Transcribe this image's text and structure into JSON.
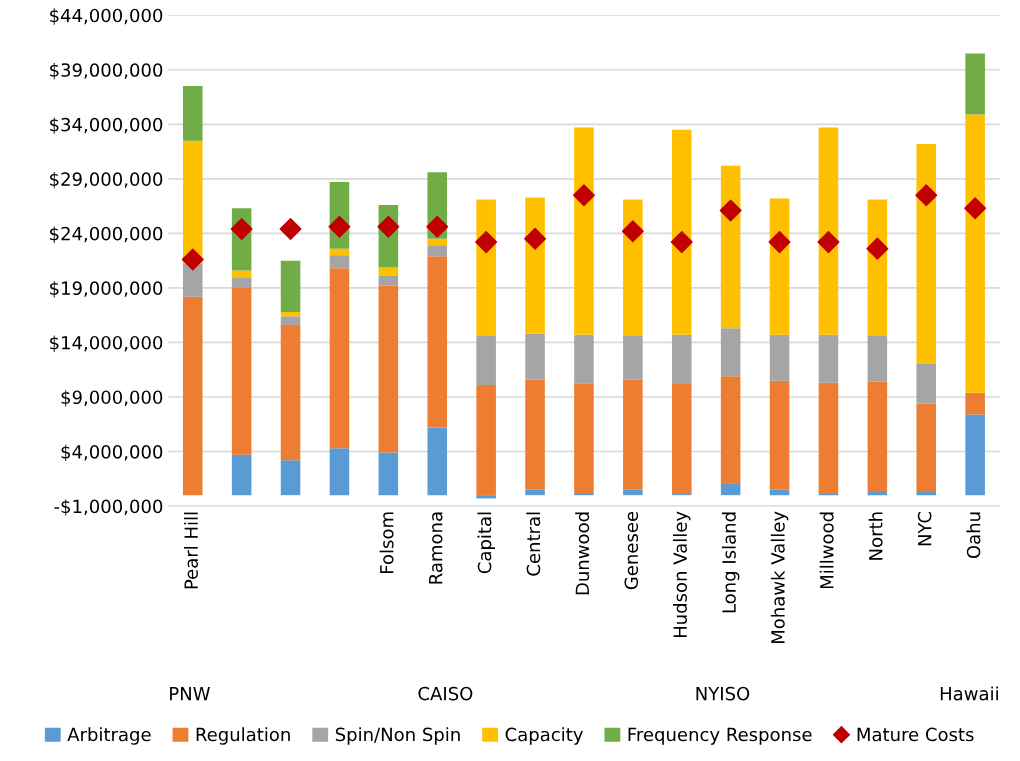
{
  "chart_data": {
    "type": "bar",
    "stacked": true,
    "categories": [
      "Pearl Hill",
      null,
      null,
      null,
      "Folsom",
      "Ramona",
      "Capital",
      "Central",
      "Dunwood",
      "Genesee",
      "Hudson Valley",
      "Long Island",
      "Mohawk Valley",
      "Millwood",
      "North",
      "NYC",
      "Oahu"
    ],
    "series": [
      {
        "name": "Arbitrage",
        "color": "#5b9bd5",
        "values": [
          0,
          3700000,
          3200000,
          4300000,
          3900000,
          6200000,
          -300000,
          500000,
          200000,
          500000,
          100000,
          1100000,
          500000,
          100000,
          300000,
          300000,
          7400000
        ]
      },
      {
        "name": "Regulation",
        "color": "#ed7d31",
        "values": [
          18200000,
          15300000,
          12400000,
          16500000,
          15300000,
          15700000,
          10100000,
          10100000,
          10000000,
          10100000,
          10100000,
          9800000,
          10000000,
          10200000,
          10100000,
          8100000,
          2000000
        ]
      },
      {
        "name": "Spin/Non Spin",
        "color": "#a5a5a5",
        "values": [
          3000000,
          900000,
          800000,
          1200000,
          900000,
          1000000,
          4500000,
          4200000,
          4500000,
          4000000,
          4500000,
          4400000,
          4200000,
          4400000,
          4200000,
          3700000,
          0
        ]
      },
      {
        "name": "Capacity",
        "color": "#ffc000",
        "values": [
          11300000,
          700000,
          400000,
          600000,
          800000,
          600000,
          12500000,
          12500000,
          19000000,
          12500000,
          18800000,
          14900000,
          12500000,
          19000000,
          12500000,
          20100000,
          25500000
        ]
      },
      {
        "name": "Frequency Response",
        "color": "#70ad47",
        "values": [
          5000000,
          5700000,
          4700000,
          6100000,
          5700000,
          6100000,
          0,
          0,
          0,
          0,
          0,
          0,
          0,
          0,
          0,
          0,
          5600000
        ]
      },
      {
        "name": "Mature Costs",
        "type": "scatter",
        "marker": "diamond",
        "color": "#c00000",
        "values": [
          21600000,
          24400000,
          24400000,
          24600000,
          24600000,
          24600000,
          23200000,
          23500000,
          27500000,
          24200000,
          23200000,
          26100000,
          23200000,
          23200000,
          22600000,
          27500000,
          26300000
        ]
      }
    ],
    "ylim": [
      -1000000,
      44000000
    ],
    "yticks": [
      {
        "value": -1000000,
        "label": "-$1,000,000"
      },
      {
        "value": 4000000,
        "label": "$4,000,000"
      },
      {
        "value": 9000000,
        "label": "$9,000,000"
      },
      {
        "value": 14000000,
        "label": "$14,000,000"
      },
      {
        "value": 19000000,
        "label": "$19,000,000"
      },
      {
        "value": 24000000,
        "label": "$24,000,000"
      },
      {
        "value": 29000000,
        "label": "$29,000,000"
      },
      {
        "value": 34000000,
        "label": "$34,000,000"
      },
      {
        "value": 39000000,
        "label": "$39,000,000"
      },
      {
        "value": 44000000,
        "label": "$44,000,000"
      }
    ],
    "annotations": [
      "PNW",
      "CAISO",
      "NYISO",
      "Hawaii"
    ],
    "grid": "y",
    "legend": "bottom"
  }
}
